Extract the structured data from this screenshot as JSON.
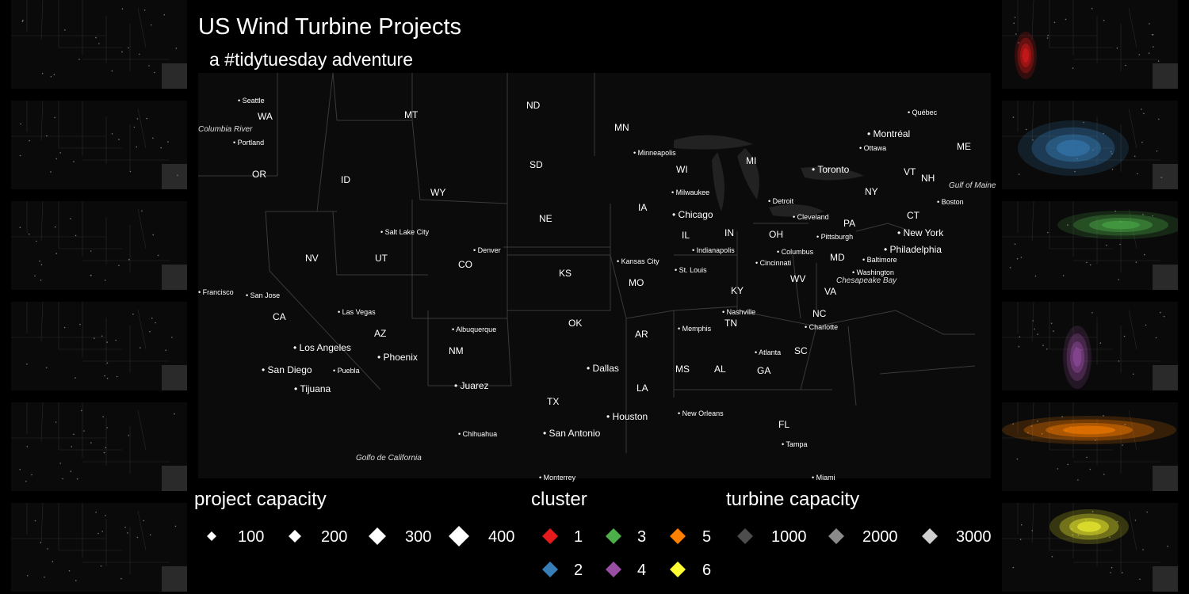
{
  "title": "US Wind Turbine Projects",
  "subtitle": "a #tidytuesday adventure",
  "colors": {
    "1": "#e41a1c",
    "2": "#377eb8",
    "3": "#4daf4a",
    "4": "#984ea3",
    "5": "#ff7f00",
    "6": "#ffff33",
    "background": "#000000",
    "land": "#0b0b0b",
    "panel": "#0a0a0a"
  },
  "legend": {
    "project_capacity": {
      "title": "project capacity",
      "items": [
        "100",
        "200",
        "300",
        "400"
      ]
    },
    "cluster": {
      "title": "cluster",
      "items": [
        "1",
        "3",
        "5",
        "2",
        "4",
        "6"
      ]
    },
    "turbine_capacity": {
      "title": "turbine capacity",
      "items": [
        "1000",
        "2000",
        "3000"
      ]
    }
  },
  "state_labels": [
    "WA",
    "MT",
    "ND",
    "MN",
    "OR",
    "ID",
    "SD",
    "WY",
    "WI",
    "MI",
    "NE",
    "NV",
    "UT",
    "CO",
    "KS",
    "MO",
    "IA",
    "IL",
    "IN",
    "OH",
    "PA",
    "NY",
    "VT",
    "NH",
    "ME",
    "CT",
    "MD",
    "WV",
    "VA",
    "KY",
    "CA",
    "AZ",
    "NM",
    "OK",
    "AR",
    "TN",
    "NC",
    "SC",
    "MS",
    "AL",
    "GA",
    "LA",
    "FL",
    "TX"
  ],
  "city_labels": [
    "Seattle",
    "Portland",
    "Québec",
    "Montréal",
    "Ottawa",
    "Toronto",
    "Minneapolis",
    "Milwaukee",
    "Detroit",
    "Chicago",
    "Cleveland",
    "Boston",
    "New York",
    "Philadelphia",
    "Pittsburgh",
    "Baltimore",
    "Washington",
    "Columbus",
    "Cincinnati",
    "Indianapolis",
    "Kansas City",
    "St. Louis",
    "Denver",
    "Salt Lake City",
    "Las Vegas",
    "Los Angeles",
    "San Diego",
    "Tijuana",
    "Puebla",
    "San Jose",
    "Francisco",
    "Phoenix",
    "Albuquerque",
    "Juarez",
    "Dallas",
    "Houston",
    "San Antonio",
    "Chihuahua",
    "Memphis",
    "Nashville",
    "Charlotte",
    "Atlanta",
    "New Orleans",
    "Tampa",
    "Miami",
    "Monterrey"
  ],
  "water_labels": [
    "Columbia River",
    "Gulf of Maine",
    "Chesapeake Bay",
    "Golfo de California"
  ],
  "regions": [
    "OR",
    "MT",
    "ND",
    "MN",
    "ID",
    "SD",
    "WY",
    "MI",
    "WI",
    "NE",
    "NV",
    "UT",
    "CO",
    "IA",
    "KS",
    "MO",
    "IL",
    "IN",
    "OH",
    "PA",
    "NY",
    "VT",
    "NH",
    "ME",
    "WV",
    "VA",
    "KY",
    "AR",
    "TN",
    "NC",
    "SC",
    "MS",
    "AL",
    "GA",
    "LA",
    "FL",
    "CT",
    "MD",
    "CA",
    "AZ",
    "NM",
    "OK",
    "TX"
  ]
}
